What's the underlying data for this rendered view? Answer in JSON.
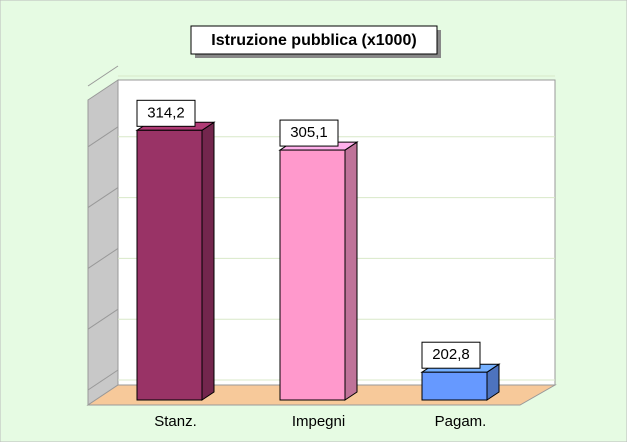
{
  "chart_data": {
    "type": "bar3d",
    "title": "Istruzione pubblica (x1000)",
    "categories": [
      "Stanz.",
      "Impegni",
      "Pagam."
    ],
    "values": [
      314.2,
      305.1,
      202.8
    ],
    "value_labels": [
      "314,2",
      "305,1",
      "202,8"
    ],
    "colors": [
      "#993366",
      "#ff99cc",
      "#6699ff"
    ],
    "ylim": [
      190,
      330
    ],
    "yticks": [
      190,
      218,
      246,
      274,
      302,
      330
    ],
    "grid": true
  }
}
